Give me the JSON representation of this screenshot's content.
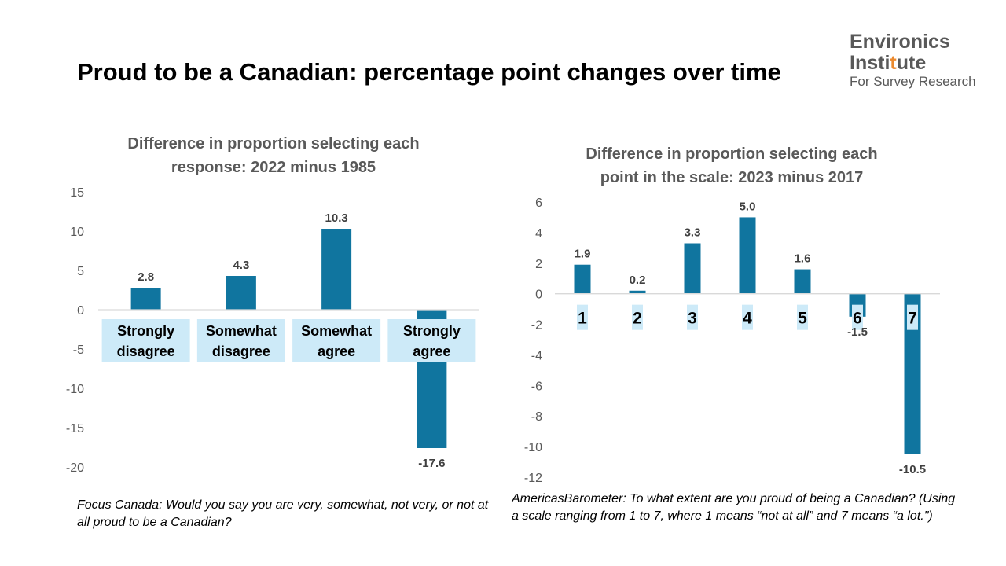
{
  "slide": {
    "title": "Proud to be a Canadian: percentage point changes over time"
  },
  "logo": {
    "line1": "Environics",
    "line2_a": "Insti",
    "line2_b": "t",
    "line2_c": "ute",
    "line3": "For Survey Research"
  },
  "colors": {
    "bar": "#10759f",
    "label_box": "#cdeaf8",
    "axis": "#d9d9d9"
  },
  "chart_data": [
    {
      "type": "bar",
      "title_lines": [
        "Difference in proportion selecting each",
        "response: 2022 minus 1985"
      ],
      "categories": [
        [
          "Strongly",
          "disagree"
        ],
        [
          "Somewhat",
          "disagree"
        ],
        [
          "Somewhat",
          "agree"
        ],
        [
          "Strongly",
          "agree"
        ]
      ],
      "values": [
        2.8,
        4.3,
        10.3,
        -17.6
      ],
      "value_labels": [
        "2.8",
        "4.3",
        "10.3",
        "-17.6"
      ],
      "ylim": [
        -20,
        15
      ],
      "yticks": [
        "15",
        "10",
        "5",
        "0",
        "-5",
        "-10",
        "-15",
        "-20"
      ],
      "grid": false
    },
    {
      "type": "bar",
      "title_lines": [
        "Difference in proportion selecting each",
        "point in the scale: 2023 minus 2017"
      ],
      "categories": [
        "1",
        "2",
        "3",
        "4",
        "5",
        "6",
        "7"
      ],
      "values": [
        1.9,
        0.2,
        3.3,
        5.0,
        1.6,
        -1.5,
        -10.5
      ],
      "value_labels": [
        "1.9",
        "0.2",
        "3.3",
        "5.0",
        "1.6",
        "-1.5",
        "-10.5"
      ],
      "ylim": [
        -12,
        6
      ],
      "yticks": [
        "6",
        "4",
        "2",
        "0",
        "-2",
        "-4",
        "-6",
        "-8",
        "-10",
        "-12"
      ],
      "grid": false
    }
  ],
  "notes": {
    "left": "Focus Canada: Would you say you are very, somewhat, not very, or not at all proud to be a Canadian?",
    "right": "AmericasBarometer: To what extent are you proud of being a Canadian? (Using a scale ranging from 1 to 7, where 1 means “not at all” and 7 means “a lot.\")"
  }
}
